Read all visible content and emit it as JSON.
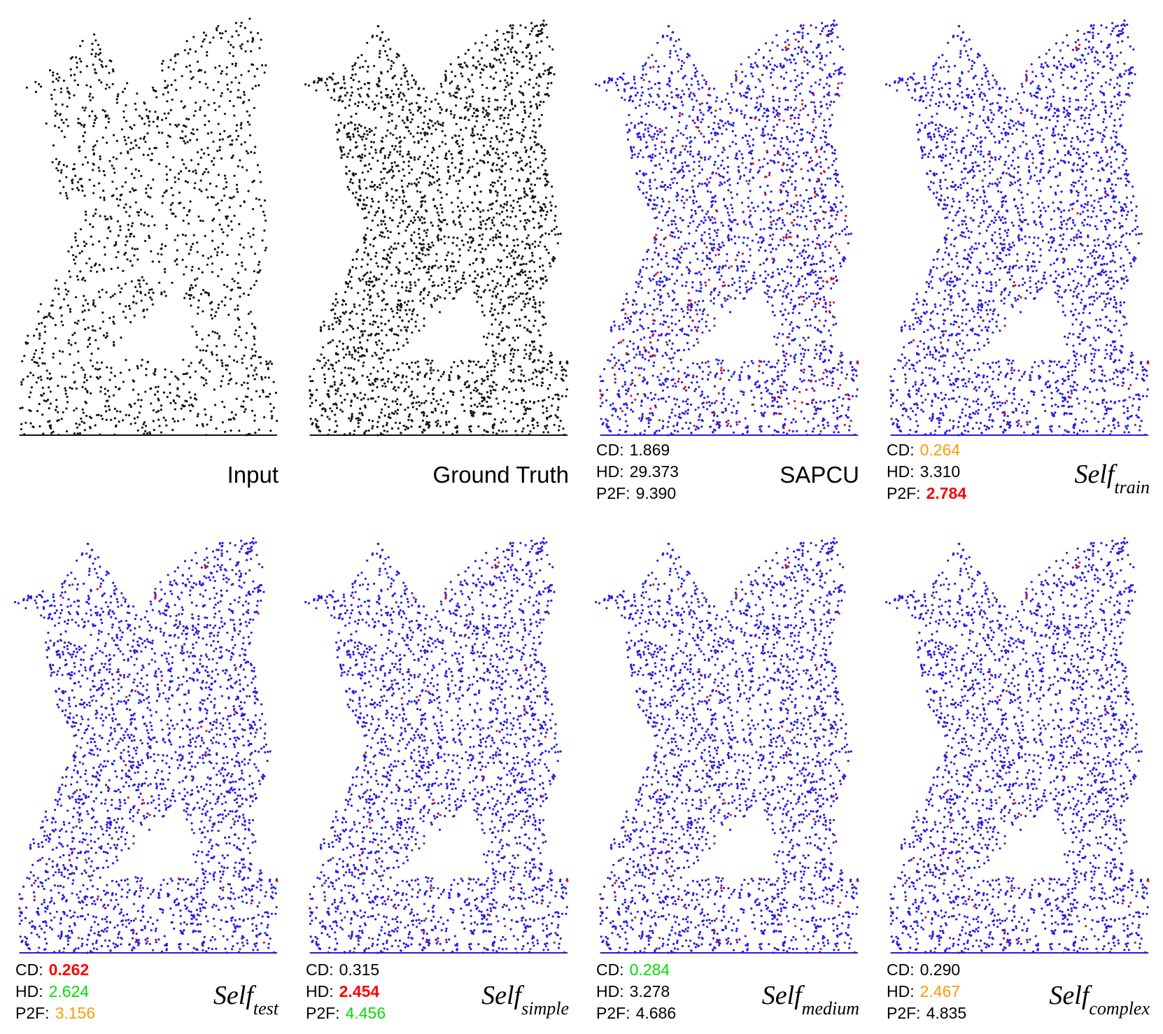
{
  "rank_colors": {
    "1": "#ff0000",
    "2": "#ff9900",
    "3": "#00dd00"
  },
  "panels": [
    {
      "label": "Input",
      "points": "black"
    },
    {
      "label": "Ground Truth",
      "points": "black"
    },
    {
      "label": "SAPCU",
      "points": "error",
      "metrics": [
        {
          "name": "CD:",
          "value": "1.869"
        },
        {
          "name": "HD:",
          "value": "29.373"
        },
        {
          "name": "P2F:",
          "value": "9.390"
        }
      ]
    },
    {
      "label": "Self",
      "sub": "train",
      "italic": true,
      "points": "error",
      "metrics": [
        {
          "name": "CD:",
          "value": "0.264",
          "rank": 2
        },
        {
          "name": "HD:",
          "value": "3.310"
        },
        {
          "name": "P2F:",
          "value": "2.784",
          "rank": 1
        }
      ]
    },
    {
      "label": "Self",
      "sub": "test",
      "italic": true,
      "points": "error",
      "metrics": [
        {
          "name": "CD:",
          "value": "0.262",
          "rank": 1
        },
        {
          "name": "HD:",
          "value": "2.624",
          "rank": 3
        },
        {
          "name": "P2F:",
          "value": "3.156",
          "rank": 2
        }
      ]
    },
    {
      "label": "Self",
      "sub": "simple",
      "italic": true,
      "points": "error",
      "metrics": [
        {
          "name": "CD:",
          "value": "0.315"
        },
        {
          "name": "HD:",
          "value": "2.454",
          "rank": 1
        },
        {
          "name": "P2F:",
          "value": "4.456",
          "rank": 3
        }
      ]
    },
    {
      "label": "Self",
      "sub": "medium",
      "italic": true,
      "points": "error",
      "metrics": [
        {
          "name": "CD:",
          "value": "0.284",
          "rank": 3
        },
        {
          "name": "HD:",
          "value": "3.278"
        },
        {
          "name": "P2F:",
          "value": "4.686"
        }
      ]
    },
    {
      "label": "Self",
      "sub": "complex",
      "italic": true,
      "points": "error",
      "metrics": [
        {
          "name": "CD:",
          "value": "0.290"
        },
        {
          "name": "HD:",
          "value": "2.467",
          "rank": 2
        },
        {
          "name": "P2F:",
          "value": "4.835"
        }
      ]
    }
  ]
}
